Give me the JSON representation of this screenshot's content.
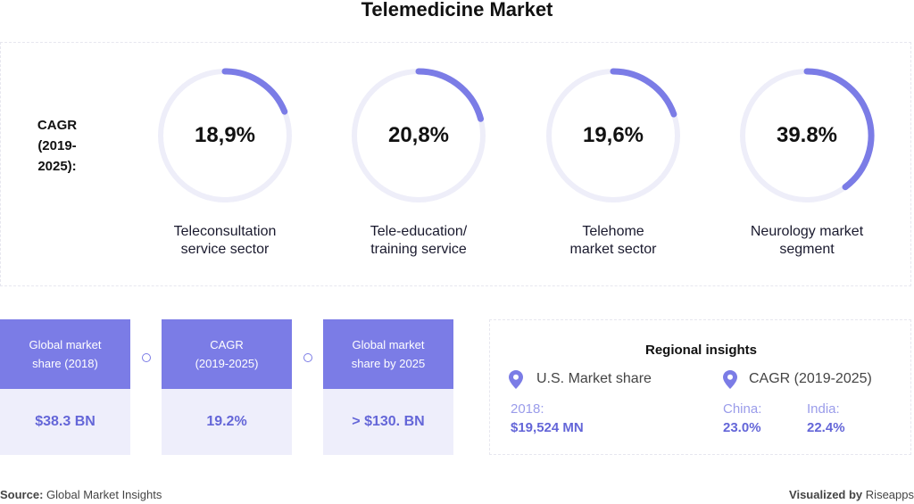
{
  "title": "Telemedicine Market",
  "cagr_label_line1": "CAGR",
  "cagr_label_line2": "(2019-2025):",
  "colors": {
    "accent": "#7b7ce6",
    "ring_track": "#eeeef9",
    "card_value_bg": "#eeeefb",
    "value_text": "#6466d8"
  },
  "chart_data": {
    "type": "donut",
    "title": "CAGR (2019-2025)",
    "items": [
      {
        "value_label": "18,9%",
        "value": 18.9,
        "label_line1": "Teleconsultation",
        "label_line2": "service sector"
      },
      {
        "value_label": "20,8%",
        "value": 20.8,
        "label_line1": "Tele-education/",
        "label_line2": "training service"
      },
      {
        "value_label": "19,6%",
        "value": 19.6,
        "label_line1": "Telehome",
        "label_line2": "market sector"
      },
      {
        "value_label": "39.8%",
        "value": 39.8,
        "label_line1": "Neurology market",
        "label_line2": "segment"
      }
    ]
  },
  "stat_cards": [
    {
      "head_line1": "Global market",
      "head_line2": "share (2018)",
      "value": "$38.3 BN"
    },
    {
      "head_line1": "CAGR",
      "head_line2": "(2019-2025)",
      "value": "19.2%"
    },
    {
      "head_line1": "Global market",
      "head_line2": "share by 2025",
      "value": "> $130. BN"
    }
  ],
  "regional": {
    "title": "Regional insights",
    "us_heading": "U.S. Market share",
    "us_year": "2018:",
    "us_value": "$19,524 MN",
    "cagr_heading": "CAGR (2019-2025)",
    "china_label": "China:",
    "china_value": "23.0%",
    "india_label": "India:",
    "india_value": "22.4%"
  },
  "footer": {
    "source_label": "Source:",
    "source_text": "Global Market Insights",
    "viz_label": "Visualized by",
    "viz_text": "Riseapps"
  }
}
